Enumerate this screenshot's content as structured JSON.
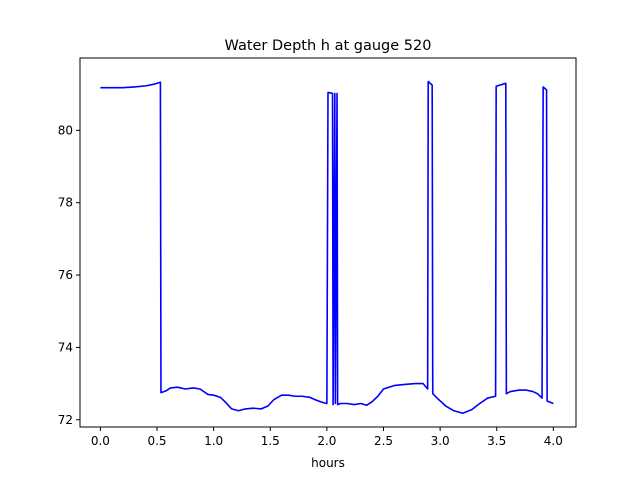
{
  "chart_data": {
    "type": "line",
    "title": "Water Depth h at gauge 520",
    "xlabel": "hours",
    "ylabel": "",
    "xlim": [
      -0.18,
      4.2
    ],
    "ylim": [
      71.8,
      82.0
    ],
    "xticks": [
      0.0,
      0.5,
      1.0,
      1.5,
      2.0,
      2.5,
      3.0,
      3.5,
      4.0
    ],
    "xtick_labels": [
      "0.0",
      "0.5",
      "1.0",
      "1.5",
      "2.0",
      "2.5",
      "3.0",
      "3.5",
      "4.0"
    ],
    "yticks": [
      72,
      74,
      76,
      78,
      80
    ],
    "ytick_labels": [
      "72",
      "74",
      "76",
      "78",
      "80"
    ],
    "grid": false,
    "series": [
      {
        "color": "#0000ff",
        "x": [
          0.0,
          0.1,
          0.2,
          0.3,
          0.4,
          0.48,
          0.53,
          0.535,
          0.58,
          0.62,
          0.68,
          0.75,
          0.82,
          0.88,
          0.95,
          1.0,
          1.06,
          1.1,
          1.16,
          1.22,
          1.28,
          1.35,
          1.42,
          1.48,
          1.53,
          1.6,
          1.66,
          1.72,
          1.78,
          1.85,
          1.9,
          1.96,
          2.0,
          2.01,
          2.05,
          2.055,
          2.07,
          2.075,
          2.09,
          2.095,
          2.12,
          2.18,
          2.24,
          2.3,
          2.35,
          2.4,
          2.45,
          2.5,
          2.6,
          2.7,
          2.78,
          2.85,
          2.89,
          2.895,
          2.93,
          2.935,
          2.98,
          3.05,
          3.12,
          3.2,
          3.28,
          3.35,
          3.42,
          3.49,
          3.495,
          3.58,
          3.585,
          3.62,
          3.7,
          3.76,
          3.82,
          3.86,
          3.9,
          3.91,
          3.94,
          3.945,
          4.0
        ],
        "y": [
          81.18,
          81.18,
          81.18,
          81.2,
          81.23,
          81.28,
          81.33,
          72.75,
          72.8,
          72.88,
          72.9,
          72.85,
          72.88,
          72.85,
          72.7,
          72.68,
          72.62,
          72.5,
          72.3,
          72.25,
          72.3,
          72.32,
          72.3,
          72.38,
          72.55,
          72.68,
          72.68,
          72.65,
          72.65,
          72.62,
          72.55,
          72.48,
          72.45,
          81.05,
          81.02,
          72.42,
          81.02,
          72.45,
          81.02,
          72.42,
          72.45,
          72.45,
          72.42,
          72.45,
          72.4,
          72.5,
          72.65,
          72.85,
          72.95,
          72.98,
          73.0,
          73.0,
          72.85,
          81.35,
          81.25,
          72.72,
          72.58,
          72.38,
          72.25,
          72.18,
          72.28,
          72.45,
          72.6,
          72.65,
          81.22,
          81.3,
          72.72,
          72.78,
          72.82,
          72.82,
          72.78,
          72.72,
          72.6,
          81.2,
          81.12,
          72.52,
          72.45
        ]
      }
    ]
  }
}
